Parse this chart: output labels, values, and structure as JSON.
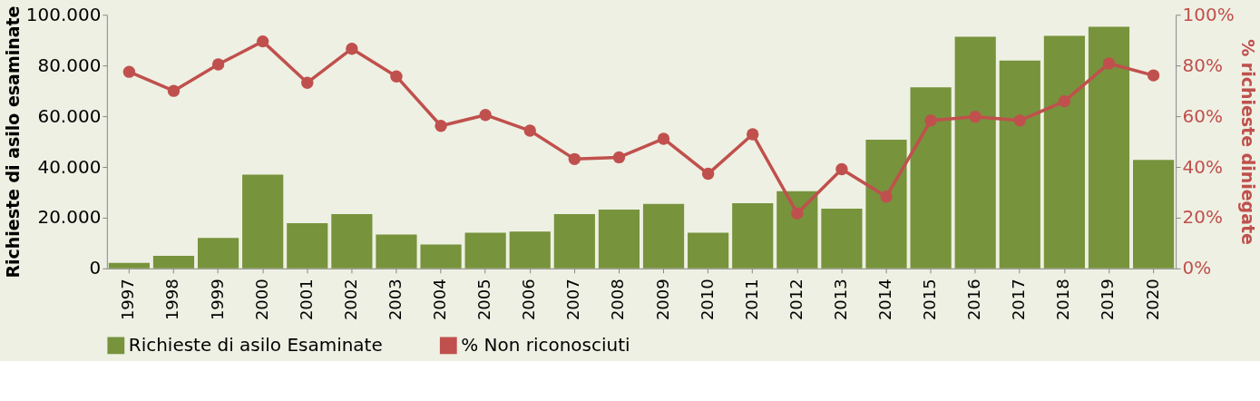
{
  "chart_data": {
    "type": "bar",
    "ylabel": "Richieste di asilo esaminate",
    "y2label": "% richieste diniegate",
    "categories": [
      "1997",
      "1998",
      "1999",
      "2000",
      "2001",
      "2002",
      "2003",
      "2004",
      "2005",
      "2006",
      "2007",
      "2008",
      "2009",
      "2010",
      "2011",
      "2012",
      "2013",
      "2014",
      "2015",
      "2016",
      "2017",
      "2018",
      "2019",
      "2020"
    ],
    "series": [
      {
        "name": "Richieste di asilo Esaminate",
        "color": "#77933c",
        "values": [
          2200,
          5000,
          12000,
          37000,
          17800,
          21400,
          13400,
          9400,
          14100,
          14500,
          21400,
          23200,
          25400,
          14100,
          25700,
          30400,
          23600,
          50700,
          71400,
          91300,
          81900,
          91700,
          95300,
          42800
        ]
      },
      {
        "name": "% Non riconosciuti",
        "type": "line",
        "axis": "y2",
        "color": "#c0504d",
        "marker": "circle",
        "values": [
          77.5,
          70,
          80.4,
          89.5,
          73.2,
          86.6,
          75.7,
          56.2,
          60.5,
          54.3,
          43.1,
          43.8,
          51.1,
          37.3,
          52.9,
          21.7,
          39.1,
          28.3,
          58.3,
          59.8,
          58.3,
          65.9,
          80.8,
          76.1
        ]
      }
    ],
    "ylim": [
      0,
      100000
    ],
    "yticks": [
      {
        "value": 0,
        "label": "0"
      },
      {
        "value": 20000,
        "label": "20.000"
      },
      {
        "value": 40000,
        "label": "40.000"
      },
      {
        "value": 60000,
        "label": "60.000"
      },
      {
        "value": 80000,
        "label": "80.000"
      },
      {
        "value": 100000,
        "label": "100.000"
      }
    ],
    "y2lim": [
      0,
      100
    ],
    "y2ticks": [
      {
        "value": 0,
        "label": "0%"
      },
      {
        "value": 20,
        "label": "20%"
      },
      {
        "value": 40,
        "label": "40%"
      },
      {
        "value": 60,
        "label": "60%"
      },
      {
        "value": 80,
        "label": "80%"
      },
      {
        "value": 100,
        "label": "100%"
      }
    ],
    "grid": false,
    "legend": "bottom"
  }
}
